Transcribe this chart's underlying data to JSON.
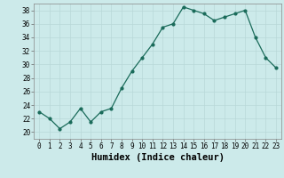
{
  "x": [
    0,
    1,
    2,
    3,
    4,
    5,
    6,
    7,
    8,
    9,
    10,
    11,
    12,
    13,
    14,
    15,
    16,
    17,
    18,
    19,
    20,
    21,
    22,
    23
  ],
  "y": [
    23,
    22,
    20.5,
    21.5,
    23.5,
    21.5,
    23,
    23.5,
    26.5,
    29,
    31,
    33,
    35.5,
    36,
    38.5,
    38,
    37.5,
    36.5,
    37,
    37.5,
    38,
    34,
    31,
    29.5
  ],
  "line_color": "#1a6b5a",
  "marker_color": "#1a6b5a",
  "bg_color": "#cceaea",
  "grid_color": "#b8d8d8",
  "xlabel": "Humidex (Indice chaleur)",
  "ylim": [
    19,
    39
  ],
  "yticks": [
    20,
    22,
    24,
    26,
    28,
    30,
    32,
    34,
    36,
    38
  ],
  "xticks": [
    0,
    1,
    2,
    3,
    4,
    5,
    6,
    7,
    8,
    9,
    10,
    11,
    12,
    13,
    14,
    15,
    16,
    17,
    18,
    19,
    20,
    21,
    22,
    23
  ],
  "tick_label_fontsize": 5.5,
  "xlabel_fontsize": 7.5
}
